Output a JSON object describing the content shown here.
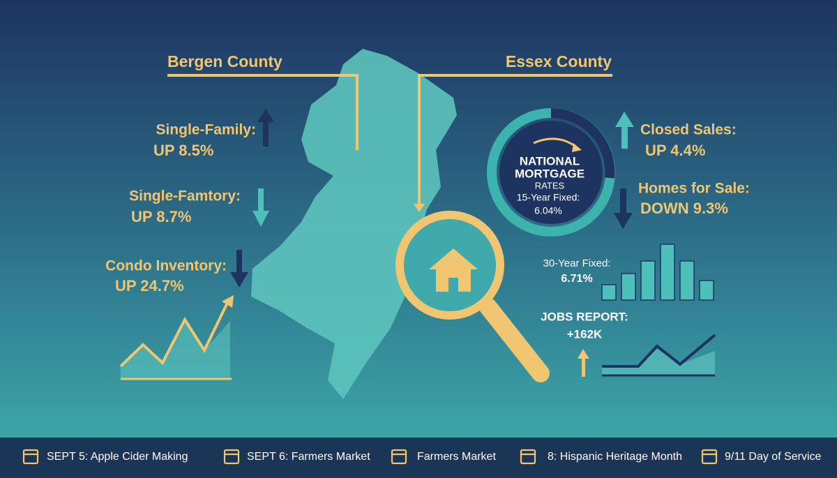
{
  "bergen": {
    "title": "Bergen County",
    "items": [
      {
        "label": "Single-Family:",
        "value": "UP 8.5%"
      },
      {
        "label": "Single-Famtory:",
        "value": "UP 8.7%"
      },
      {
        "label": "Condo Inventory:",
        "value": "UP 24.7%"
      }
    ]
  },
  "essex": {
    "title": "Essex County",
    "items": [
      {
        "label": "Closed Sales:",
        "value": "UP 4.4%"
      },
      {
        "label": "Homes for Sale:",
        "value": "DOWN 9.3%"
      }
    ]
  },
  "rates": {
    "title": [
      "NATIONAL",
      "MORTGAGE"
    ],
    "subtitle": "RATES",
    "fifteen_label": "15-Year Fixed:",
    "fifteen_value": "6.04%",
    "thirty_label": "30-Year Fixed:",
    "thirty_value": "6.71%"
  },
  "jobs": {
    "label": "JOBS REPORT:",
    "value": "+162K"
  },
  "footer": {
    "events": [
      "SEPT 5: Apple Cider Making",
      "SEPT 6: Farmers Market",
      "Farmers Market",
      "8: Hispanic Heritage Month",
      "9/11 Day of Service"
    ]
  }
}
